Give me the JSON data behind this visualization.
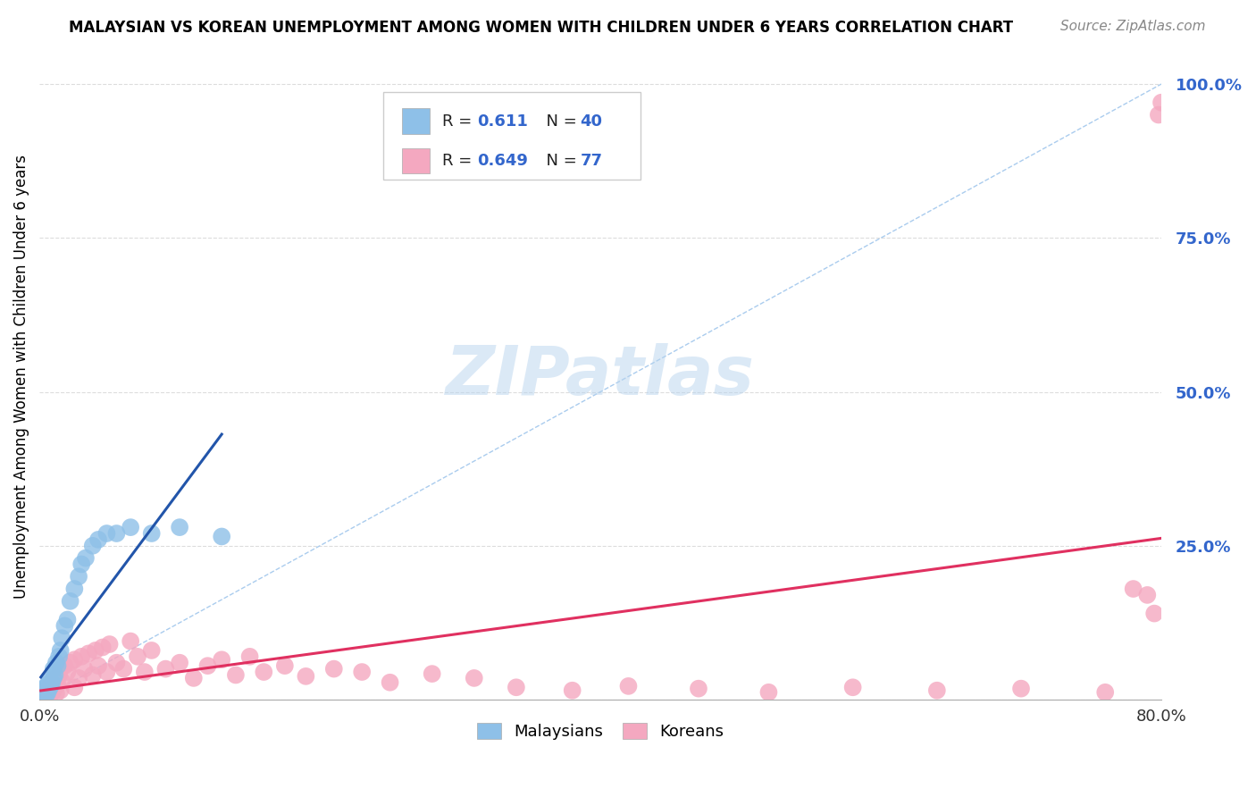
{
  "title": "MALAYSIAN VS KOREAN UNEMPLOYMENT AMONG WOMEN WITH CHILDREN UNDER 6 YEARS CORRELATION CHART",
  "source": "Source: ZipAtlas.com",
  "ylabel": "Unemployment Among Women with Children Under 6 years",
  "xlim": [
    0.0,
    0.8
  ],
  "ylim": [
    0.0,
    1.05
  ],
  "xticks": [
    0.0,
    0.1,
    0.2,
    0.3,
    0.4,
    0.5,
    0.6,
    0.7,
    0.8
  ],
  "xticklabels": [
    "0.0%",
    "",
    "",
    "",
    "",
    "",
    "",
    "",
    "80.0%"
  ],
  "yticks": [
    0.0,
    0.25,
    0.5,
    0.75,
    1.0
  ],
  "yticklabels": [
    "",
    "25.0%",
    "50.0%",
    "75.0%",
    "100.0%"
  ],
  "malaysia_color": "#8ec0e8",
  "korea_color": "#f4a8c0",
  "malaysia_line_color": "#2255aa",
  "korea_line_color": "#e03060",
  "diagonal_color": "#aaccee",
  "background_color": "#ffffff",
  "malaysia_x": [
    0.001,
    0.002,
    0.002,
    0.003,
    0.003,
    0.003,
    0.004,
    0.004,
    0.005,
    0.005,
    0.005,
    0.006,
    0.006,
    0.007,
    0.007,
    0.008,
    0.009,
    0.01,
    0.01,
    0.011,
    0.012,
    0.013,
    0.014,
    0.015,
    0.016,
    0.018,
    0.02,
    0.022,
    0.025,
    0.028,
    0.03,
    0.033,
    0.038,
    0.042,
    0.048,
    0.055,
    0.065,
    0.08,
    0.1,
    0.13
  ],
  "malaysia_y": [
    0.005,
    0.005,
    0.01,
    0.008,
    0.012,
    0.015,
    0.01,
    0.02,
    0.008,
    0.015,
    0.02,
    0.012,
    0.025,
    0.018,
    0.03,
    0.022,
    0.028,
    0.035,
    0.05,
    0.04,
    0.06,
    0.055,
    0.07,
    0.08,
    0.1,
    0.12,
    0.13,
    0.16,
    0.18,
    0.2,
    0.22,
    0.23,
    0.25,
    0.26,
    0.27,
    0.27,
    0.28,
    0.27,
    0.28,
    0.265
  ],
  "korea_x": [
    0.001,
    0.001,
    0.002,
    0.002,
    0.003,
    0.003,
    0.004,
    0.004,
    0.005,
    0.005,
    0.006,
    0.006,
    0.007,
    0.007,
    0.008,
    0.008,
    0.009,
    0.01,
    0.01,
    0.011,
    0.012,
    0.012,
    0.013,
    0.014,
    0.015,
    0.015,
    0.016,
    0.018,
    0.02,
    0.022,
    0.025,
    0.025,
    0.028,
    0.03,
    0.032,
    0.035,
    0.038,
    0.04,
    0.042,
    0.045,
    0.048,
    0.05,
    0.055,
    0.06,
    0.065,
    0.07,
    0.075,
    0.08,
    0.09,
    0.1,
    0.11,
    0.12,
    0.13,
    0.14,
    0.15,
    0.16,
    0.175,
    0.19,
    0.21,
    0.23,
    0.25,
    0.28,
    0.31,
    0.34,
    0.38,
    0.42,
    0.47,
    0.52,
    0.58,
    0.64,
    0.7,
    0.76,
    0.78,
    0.79,
    0.795,
    0.798,
    0.8
  ],
  "korea_y": [
    0.002,
    0.005,
    0.003,
    0.008,
    0.004,
    0.01,
    0.006,
    0.012,
    0.005,
    0.015,
    0.008,
    0.018,
    0.01,
    0.02,
    0.008,
    0.025,
    0.012,
    0.015,
    0.03,
    0.02,
    0.01,
    0.035,
    0.025,
    0.04,
    0.015,
    0.05,
    0.03,
    0.055,
    0.045,
    0.06,
    0.02,
    0.065,
    0.035,
    0.07,
    0.05,
    0.075,
    0.04,
    0.08,
    0.055,
    0.085,
    0.045,
    0.09,
    0.06,
    0.05,
    0.095,
    0.07,
    0.045,
    0.08,
    0.05,
    0.06,
    0.035,
    0.055,
    0.065,
    0.04,
    0.07,
    0.045,
    0.055,
    0.038,
    0.05,
    0.045,
    0.028,
    0.042,
    0.035,
    0.02,
    0.015,
    0.022,
    0.018,
    0.012,
    0.02,
    0.015,
    0.018,
    0.012,
    0.18,
    0.17,
    0.14,
    0.95,
    0.97
  ]
}
